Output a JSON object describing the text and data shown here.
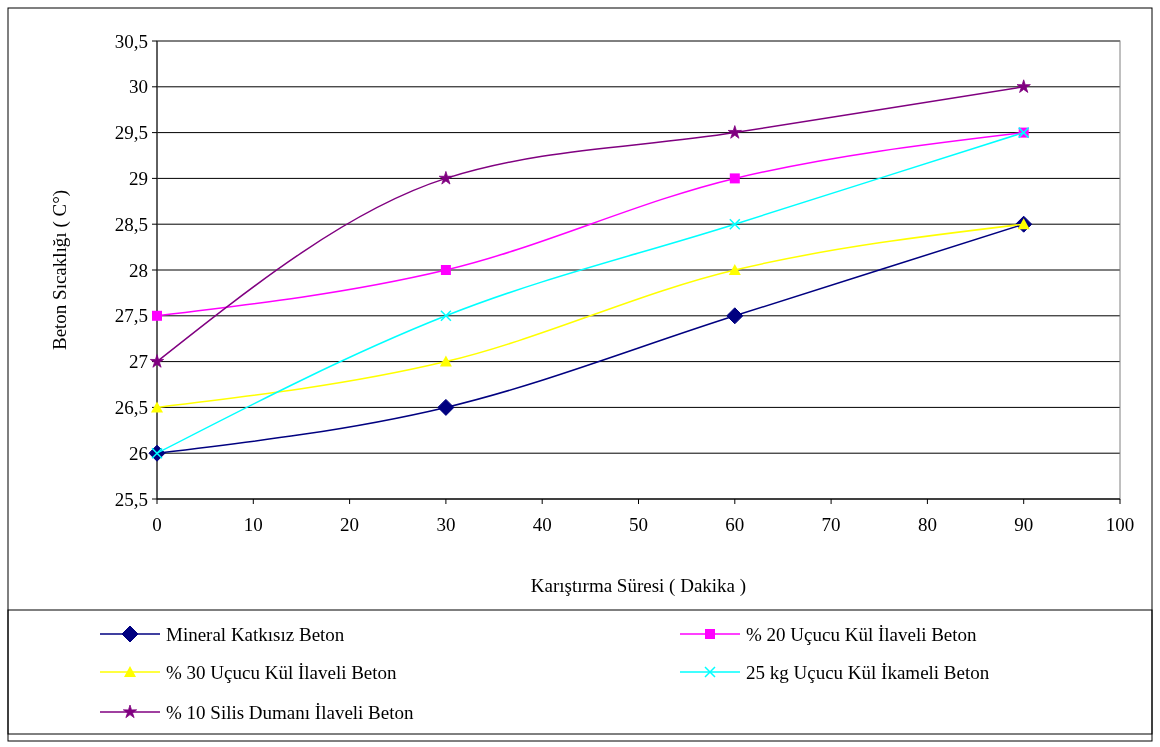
{
  "chart_data": {
    "type": "line",
    "xlabel": "Karıştırma Süresi ( Dakika )",
    "ylabel": "Beton Sıcaklığı ( C°)",
    "x": [
      0,
      30,
      60,
      90
    ],
    "xlim": [
      0,
      100
    ],
    "xticks": [
      0,
      10,
      20,
      30,
      40,
      50,
      60,
      70,
      80,
      90,
      100
    ],
    "ylim": [
      25.5,
      30.5
    ],
    "yticks": [
      {
        "value": 25.5,
        "label": "25,5"
      },
      26,
      {
        "value": 26.5,
        "label": "26,5"
      },
      27,
      {
        "value": 27.5,
        "label": "27,5"
      },
      28,
      {
        "value": 28.5,
        "label": "28,5"
      },
      29,
      {
        "value": 29.5,
        "label": "29,5"
      },
      30,
      {
        "value": 30.5,
        "label": "30,5"
      }
    ],
    "grid": "y",
    "legend": "bottom",
    "series": [
      {
        "name": "Mineral Katkısız Beton",
        "color": "#000080",
        "marker": "diamond",
        "values": [
          26,
          26.5,
          27.5,
          28.5
        ]
      },
      {
        "name": "% 20 Uçucu Kül İlaveli Beton",
        "color": "#ff00ff",
        "marker": "square",
        "values": [
          27.5,
          28,
          29,
          29.5
        ]
      },
      {
        "name": "% 30 Uçucu Kül İlaveli Beton",
        "color": "#ffff00",
        "marker": "triangle",
        "values": [
          26.5,
          27,
          28,
          28.5
        ]
      },
      {
        "name": "25 kg Uçucu Kül İkameli Beton",
        "color": "#00ffff",
        "marker": "cross",
        "values": [
          26,
          27.5,
          28.5,
          29.5
        ]
      },
      {
        "name": "% 10 Silis Dumanı İlaveli Beton",
        "color": "#800080",
        "marker": "star",
        "values": [
          27,
          29,
          29.5,
          30
        ]
      }
    ]
  }
}
